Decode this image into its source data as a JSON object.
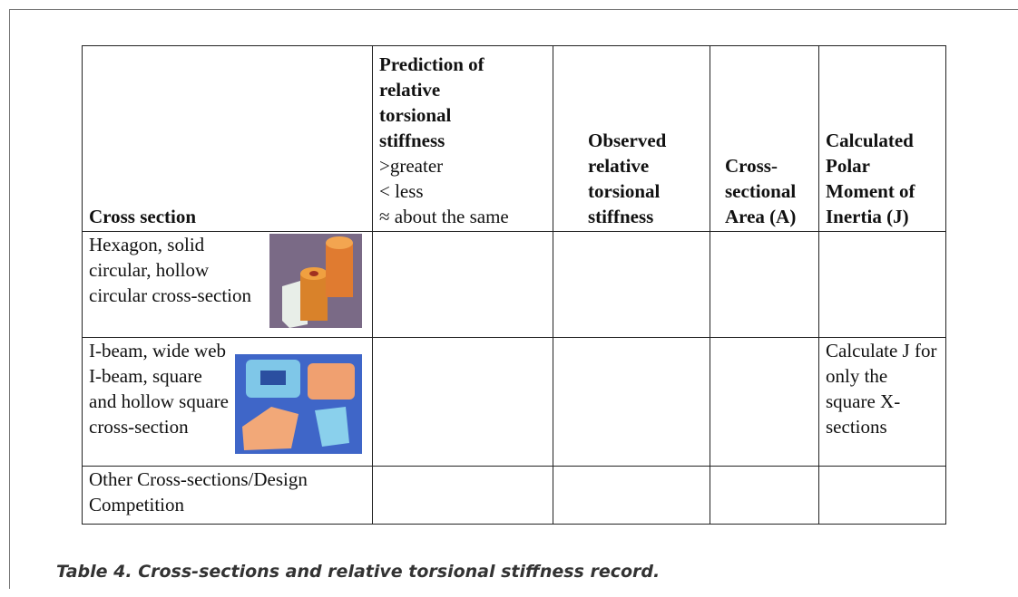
{
  "table": {
    "header": {
      "cross_section": "Cross section",
      "prediction": {
        "title": "Prediction of relative torsional stiffness",
        "key": [
          ">greater",
          "< less",
          "≈ about the same"
        ]
      },
      "observed": "Observed relative torsional stiffness",
      "area": "Cross-sectional Area (A)",
      "polar": "Calculated Polar Moment of Inertia (J)"
    },
    "rows": [
      {
        "cross_section": "Hexagon, solid circular, hollow circular cross-section"
      },
      {
        "cross_section": "I-beam, wide web I-beam, square and hollow square cross-section",
        "polar": "Calculate J for only the square X-sections"
      },
      {
        "cross_section": "Other Cross-sections/Design Competition"
      }
    ]
  },
  "caption": "Table 4. Cross-sections and relative torsional stiffness record."
}
